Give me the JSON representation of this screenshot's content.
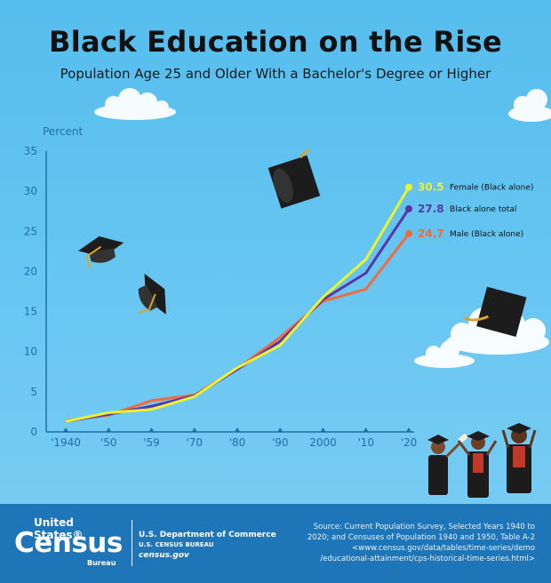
{
  "title": "Black Education on the Rise",
  "subtitle": "Population Age 25 and Older With a Bachelor's Degree or Higher",
  "chart_data": {
    "type": "line",
    "ylabel": "Percent",
    "ylim": [
      0,
      35
    ],
    "y_ticks": [
      "0",
      "5",
      "10",
      "15",
      "20",
      "25",
      "30",
      "35"
    ],
    "x_ticks": [
      "'1940",
      "'50",
      "'59",
      "'70",
      "'80",
      "'90",
      "2000",
      "'10",
      "'20"
    ],
    "x": [
      1940,
      1950,
      1959,
      1970,
      1980,
      1990,
      2000,
      2010,
      2020
    ],
    "grid": false,
    "legend": "right",
    "series": [
      {
        "name": "Female (Black alone)",
        "end_label": "30.5",
        "color": "#eef22e",
        "values": [
          1.3,
          2.4,
          2.8,
          4.4,
          8.0,
          10.8,
          16.8,
          21.5,
          30.5
        ]
      },
      {
        "name": "Black alone total",
        "end_label": "27.8",
        "color": "#5a36a6",
        "values": [
          1.3,
          2.2,
          3.2,
          4.5,
          7.8,
          11.3,
          16.5,
          19.8,
          27.8
        ]
      },
      {
        "name": "Male (Black alone)",
        "end_label": "24.7",
        "color": "#f06a3e",
        "values": [
          1.4,
          2.1,
          3.9,
          4.6,
          7.9,
          11.8,
          16.3,
          17.8,
          24.7
        ]
      }
    ]
  },
  "footer": {
    "logo_top": "United States®",
    "logo_main": "Census",
    "logo_bureau": "Bureau",
    "dept": "U.S. Department of Commerce",
    "bureau": "U.S. CENSUS BUREAU",
    "website": "census.gov",
    "source": [
      "Source: Current Population Survey, Selected Years 1940 to",
      "2020; and Censuses of Population 1940 and 1950, Table A-2",
      "<www.census.gov/data/tables/time-series/demo",
      "/educational-attainment/cps-historical-time-series.html>"
    ]
  },
  "colors": {
    "background": "#5dc1ef",
    "footer": "#1e75b8",
    "axis": "#1f6fa6"
  },
  "icons": [
    "graduation-cap-icon",
    "cloud-icon",
    "graduate-person-icon"
  ]
}
